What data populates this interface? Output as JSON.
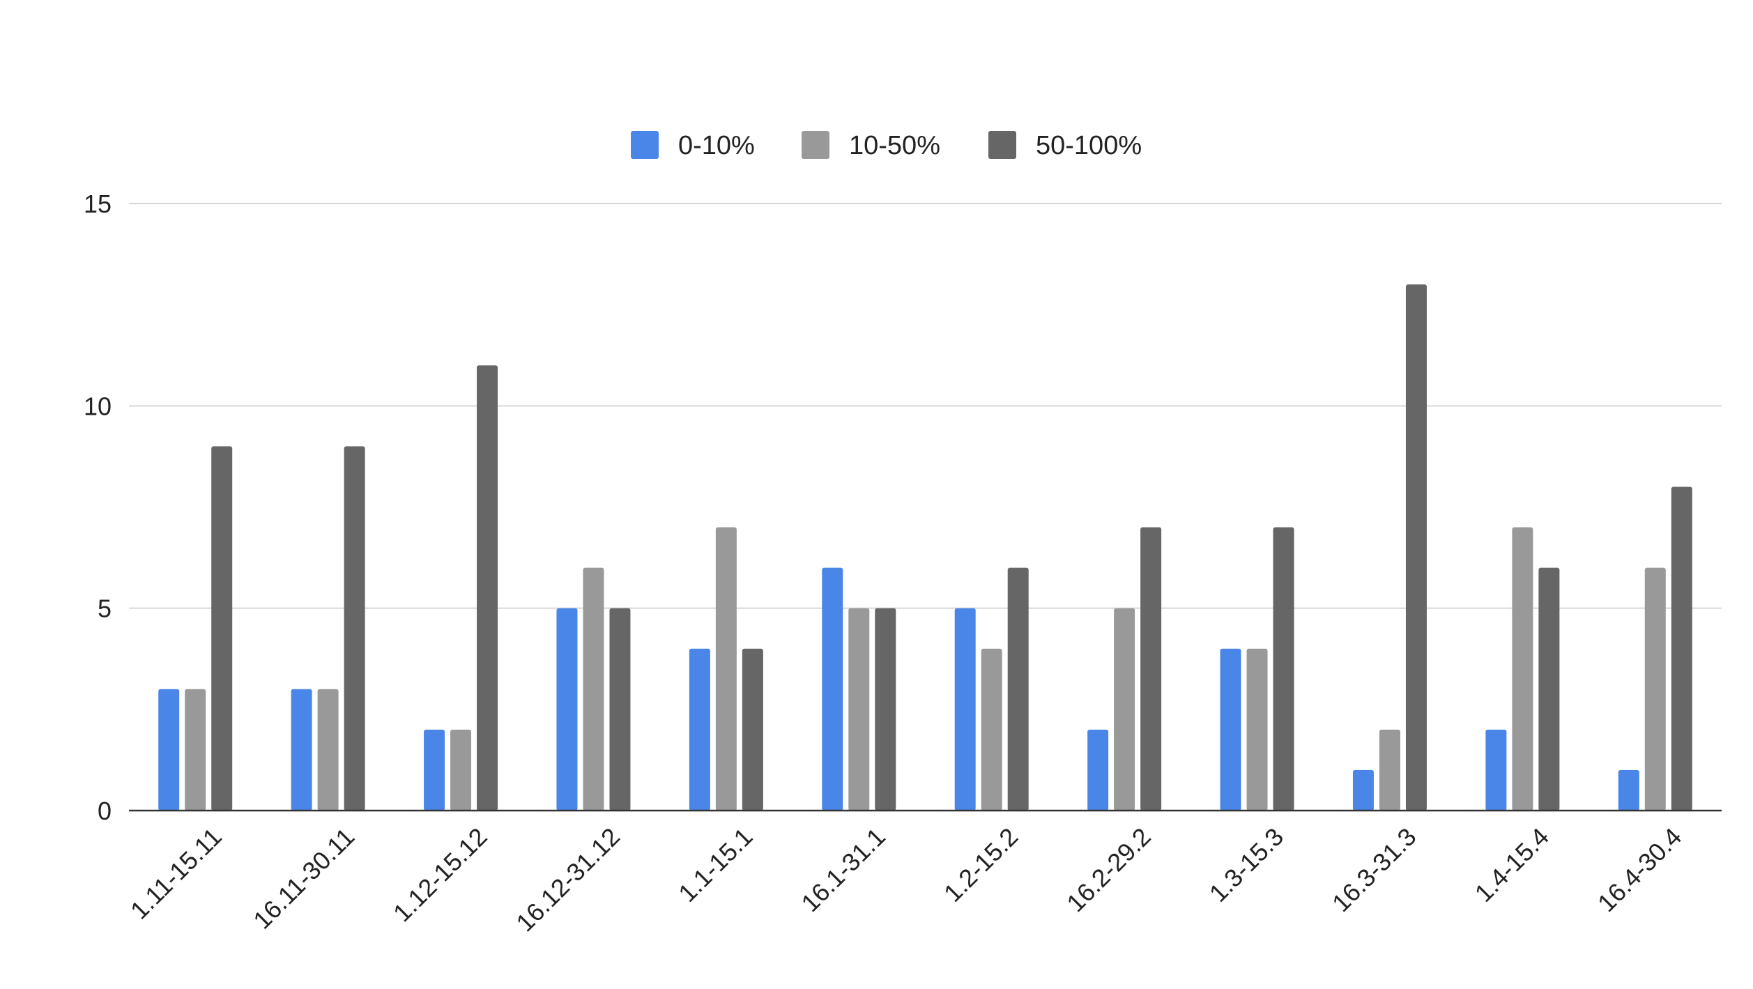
{
  "chart_data": {
    "type": "bar",
    "title": "",
    "xlabel": "",
    "ylabel": "",
    "ylim": [
      0,
      15
    ],
    "yticks": [
      0,
      5,
      10,
      15
    ],
    "grid": true,
    "legend_position": "top-center",
    "categories": [
      "1.11-15.11",
      "16.11-30.11",
      "1.12-15.12",
      "16.12-31.12",
      "1.1-15.1",
      "16.1-31.1",
      "1.2-15.2",
      "16.2-29.2",
      "1.3-15.3",
      "16.3-31.3",
      "1.4-15.4",
      "16.4-30.4"
    ],
    "series": [
      {
        "name": "0-10%",
        "color": "#4a86e8",
        "values": [
          3,
          3,
          2,
          5,
          4,
          6,
          5,
          2,
          4,
          1,
          2,
          1
        ]
      },
      {
        "name": "10-50%",
        "color": "#999999",
        "values": [
          3,
          3,
          2,
          6,
          7,
          5,
          4,
          5,
          4,
          2,
          7,
          6
        ]
      },
      {
        "name": "50-100%",
        "color": "#666666",
        "values": [
          9,
          9,
          11,
          5,
          4,
          5,
          6,
          7,
          7,
          13,
          6,
          8
        ]
      }
    ]
  }
}
